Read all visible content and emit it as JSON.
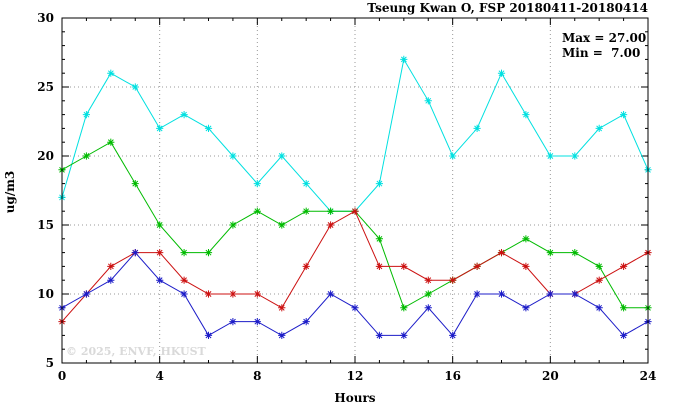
{
  "title": "Tseung Kwan O, FSP 20180411-20180414",
  "annotation": {
    "max_label": "Max = 27.00",
    "min_label": "Min =  7.00"
  },
  "watermark": "© 2025, ENVF, HKUST",
  "chart_data": {
    "type": "line",
    "title": "Tseung Kwan O, FSP 20180411-20180414",
    "xlabel": "Hours",
    "ylabel": "ug/m3",
    "xlim": [
      0,
      24
    ],
    "ylim": [
      5,
      30
    ],
    "xticks": [
      0,
      4,
      8,
      12,
      16,
      20,
      24
    ],
    "yticks": [
      5,
      10,
      15,
      20,
      25,
      30
    ],
    "grid": true,
    "legend": "none",
    "marker": "asterisk",
    "x": [
      0,
      1,
      2,
      3,
      4,
      5,
      6,
      7,
      8,
      9,
      10,
      11,
      12,
      13,
      14,
      15,
      16,
      17,
      18,
      19,
      20,
      21,
      22,
      23,
      24
    ],
    "series": [
      {
        "name": "series-cyan",
        "color": "#00e0e0",
        "values": [
          17,
          23,
          26,
          25,
          22,
          23,
          22,
          20,
          18,
          20,
          18,
          16,
          16,
          18,
          27,
          24,
          20,
          22,
          26,
          23,
          20,
          20,
          22,
          23,
          19
        ]
      },
      {
        "name": "series-green",
        "color": "#00bb00",
        "values": [
          19,
          20,
          21,
          18,
          15,
          13,
          13,
          15,
          16,
          15,
          16,
          16,
          16,
          14,
          9,
          10,
          11,
          12,
          13,
          14,
          13,
          13,
          12,
          9,
          9
        ]
      },
      {
        "name": "series-red",
        "color": "#cc1111",
        "values": [
          8,
          10,
          12,
          13,
          13,
          11,
          10,
          10,
          10,
          9,
          12,
          15,
          16,
          12,
          12,
          11,
          11,
          12,
          13,
          12,
          10,
          10,
          11,
          12,
          13
        ]
      },
      {
        "name": "series-blue",
        "color": "#1c1cc8",
        "values": [
          9,
          10,
          11,
          13,
          11,
          10,
          7,
          8,
          8,
          7,
          8,
          10,
          9,
          7,
          7,
          9,
          7,
          10,
          10,
          9,
          10,
          10,
          9,
          7,
          8
        ]
      }
    ],
    "stats": {
      "max": 27.0,
      "min": 7.0
    }
  }
}
